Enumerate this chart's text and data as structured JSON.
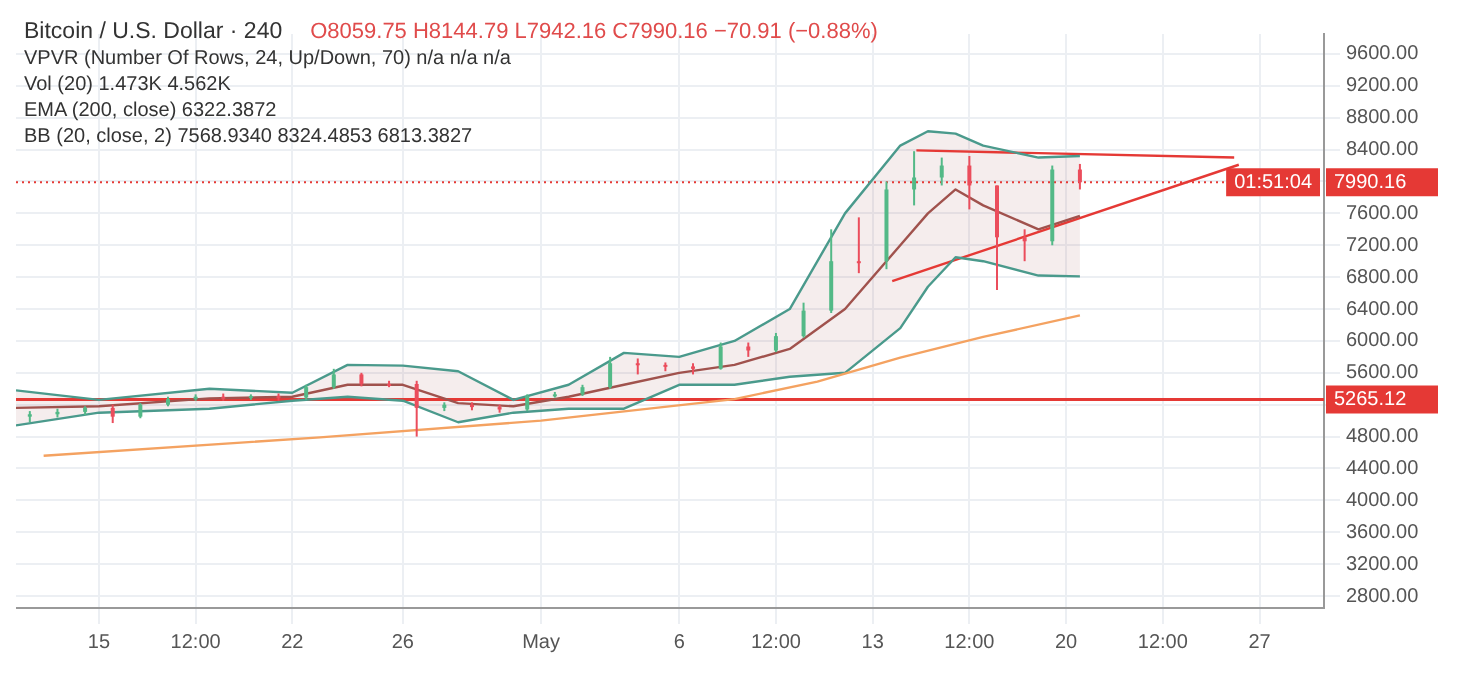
{
  "chart_data": {
    "type": "candlestick",
    "title": "Bitcoin / U.S. Dollar · 240",
    "annotations": [
      "O8059.75 H8144.79 L7942.16 C7990.16 −70.91 (−0.88%)",
      "VPVR (Number Of Rows, 24, Up/Down, 70) n/a n/a n/a",
      "Vol (20) 1.473K 4.562K",
      "EMA (200, close) 6322.3872",
      "BB (20, close, 2) 7568.9340 8324.4853 6813.3827",
      "01:51:04"
    ],
    "x": [
      "--04-12T12:00",
      "--04-13T12:00",
      "--04-14T12:00",
      "--04-15T12:00",
      "--04-16T12:00",
      "--04-17T12:00",
      "--04-18T12:00",
      "--04-19T12:00",
      "--04-20T12:00",
      "--04-21T12:00",
      "--04-22T12:00",
      "--04-23T12:00",
      "--04-24T12:00",
      "--04-25T12:00",
      "--04-26T12:00",
      "--04-27T12:00",
      "--04-28T12:00",
      "--04-29T12:00",
      "--04-30T12:00",
      "--05-01T12:00",
      "--05-02T12:00",
      "--05-03T12:00",
      "--05-04T12:00",
      "--05-05T12:00",
      "--05-06T12:00",
      "--05-07T12:00",
      "--05-08T12:00",
      "--05-09T12:00",
      "--05-10T12:00",
      "--05-11T12:00",
      "--05-12T12:00",
      "--05-13T12:00",
      "--05-14T12:00",
      "--05-15T12:00",
      "--05-16T12:00",
      "--05-17T12:00",
      "--05-18T12:00",
      "--05-19T12:00",
      "--05-20T12:00"
    ],
    "ohlc": [
      [
        5050,
        5120,
        4980,
        5080
      ],
      [
        5080,
        5150,
        5040,
        5110
      ],
      [
        5110,
        5180,
        5070,
        5160
      ],
      [
        5160,
        5200,
        4970,
        5050
      ],
      [
        5050,
        5220,
        5030,
        5200
      ],
      [
        5200,
        5300,
        5180,
        5270
      ],
      [
        5270,
        5330,
        5250,
        5300
      ],
      [
        5300,
        5340,
        5250,
        5290
      ],
      [
        5290,
        5330,
        5260,
        5310
      ],
      [
        5310,
        5340,
        5250,
        5290
      ],
      [
        5290,
        5450,
        5260,
        5420
      ],
      [
        5420,
        5650,
        5400,
        5580
      ],
      [
        5580,
        5600,
        5430,
        5460
      ],
      [
        5460,
        5500,
        5420,
        5460
      ],
      [
        5460,
        5500,
        4800,
        5160
      ],
      [
        5160,
        5230,
        5120,
        5200
      ],
      [
        5200,
        5230,
        5130,
        5170
      ],
      [
        5170,
        5200,
        5100,
        5140
      ],
      [
        5140,
        5330,
        5120,
        5310
      ],
      [
        5310,
        5360,
        5290,
        5330
      ],
      [
        5330,
        5450,
        5310,
        5420
      ],
      [
        5420,
        5800,
        5400,
        5720
      ],
      [
        5720,
        5780,
        5580,
        5700
      ],
      [
        5700,
        5730,
        5620,
        5680
      ],
      [
        5680,
        5720,
        5580,
        5650
      ],
      [
        5650,
        5980,
        5640,
        5930
      ],
      [
        5930,
        5980,
        5800,
        5880
      ],
      [
        5880,
        6100,
        5860,
        6060
      ],
      [
        6060,
        6480,
        6040,
        6380
      ],
      [
        6380,
        7400,
        6350,
        7000
      ],
      [
        7000,
        7550,
        6850,
        7000
      ],
      [
        7000,
        8000,
        6900,
        7900
      ],
      [
        7900,
        8380,
        7700,
        8050
      ],
      [
        8050,
        8300,
        7950,
        8200
      ],
      [
        8200,
        8320,
        7650,
        7950
      ],
      [
        7950,
        7950,
        6640,
        7300
      ],
      [
        7300,
        7400,
        7000,
        7250
      ],
      [
        7250,
        8200,
        7200,
        8150
      ],
      [
        8150,
        8220,
        7900,
        7990
      ]
    ],
    "colors": [
      "#53b987",
      "#53b987",
      "#53b987",
      "#eb4d5c",
      "#53b987",
      "#53b987",
      "#53b987",
      "#eb4d5c",
      "#53b987",
      "#eb4d5c",
      "#53b987",
      "#53b987",
      "#eb4d5c",
      "#eb4d5c",
      "#eb4d5c",
      "#53b987",
      "#eb4d5c",
      "#eb4d5c",
      "#53b987",
      "#53b987",
      "#53b987",
      "#53b987",
      "#eb4d5c",
      "#eb4d5c",
      "#eb4d5c",
      "#53b987",
      "#eb4d5c",
      "#53b987",
      "#53b987",
      "#53b987",
      "#eb4d5c",
      "#53b987",
      "#53b987",
      "#53b987",
      "#eb4d5c",
      "#eb4d5c",
      "#eb4d5c",
      "#53b987",
      "#eb4d5c"
    ],
    "series": [
      {
        "type": "line",
        "color": "#f4a261",
        "x": [
          "--04-13",
          "--04-23",
          "--05-01",
          "--05-08",
          "--05-11",
          "--05-14",
          "--05-17",
          "--05-20T12:00"
        ],
        "values": [
          4560,
          4790,
          5000,
          5270,
          5490,
          5790,
          6050,
          6320
        ]
      },
      {
        "type": "line",
        "color": "#a0524d",
        "x": [
          "--04-12",
          "--04-15",
          "--04-19",
          "--04-22",
          "--04-24",
          "--04-26",
          "--04-28",
          "--04-30",
          "--05-02",
          "--05-04",
          "--05-06",
          "--05-08",
          "--05-10",
          "--05-12",
          "--05-14",
          "--05-15",
          "--05-16",
          "--05-17",
          "--05-19",
          "--05-20T12:00"
        ],
        "values": [
          5160,
          5180,
          5280,
          5300,
          5450,
          5450,
          5220,
          5180,
          5300,
          5450,
          5600,
          5700,
          5900,
          6400,
          7200,
          7600,
          7900,
          7700,
          7400,
          7570
        ],
        "upper": [
          5380,
          5260,
          5400,
          5350,
          5700,
          5690,
          5620,
          5260,
          5450,
          5850,
          5800,
          6000,
          6400,
          7600,
          8450,
          8630,
          8600,
          8450,
          8300,
          8320
        ],
        "lower": [
          4940,
          5100,
          5150,
          5250,
          5300,
          5250,
          4980,
          5100,
          5150,
          5150,
          5450,
          5450,
          5550,
          5600,
          6160,
          6680,
          7050,
          7000,
          6820,
          6810
        ]
      },
      {
        "type": "line",
        "color": "#4a9a8c",
        "x": [
          "--04-12",
          "--04-15",
          "--04-19",
          "--04-22",
          "--04-24",
          "--04-26",
          "--04-28",
          "--04-30",
          "--05-02",
          "--05-04",
          "--05-06",
          "--05-08",
          "--05-10",
          "--05-12",
          "--05-14",
          "--05-15",
          "--05-16",
          "--05-17",
          "--05-19",
          "--05-20T12:00"
        ],
        "values": [
          5380,
          5260,
          5400,
          5350,
          5700,
          5690,
          5620,
          5260,
          5450,
          5850,
          5800,
          6000,
          6400,
          7600,
          8450,
          8630,
          8600,
          8450,
          8300,
          8320
        ]
      },
      {
        "type": "line",
        "color": "#4a9a8c",
        "x": [
          "--04-12",
          "--04-15",
          "--04-19",
          "--04-22",
          "--04-24",
          "--04-26",
          "--04-28",
          "--04-30",
          "--05-02",
          "--05-04",
          "--05-06",
          "--05-08",
          "--05-10",
          "--05-12",
          "--05-14",
          "--05-15",
          "--05-16",
          "--05-17",
          "--05-19",
          "--05-20T12:00"
        ],
        "values": [
          4940,
          5100,
          5150,
          5250,
          5300,
          5250,
          4980,
          5100,
          5150,
          5150,
          5450,
          5450,
          5550,
          5600,
          6160,
          6680,
          7050,
          7000,
          6820,
          6810
        ]
      },
      {
        "type": "line",
        "color": "#e53935",
        "x": [
          "--05-14T14:00",
          "--05-26T02:00"
        ],
        "values": [
          8390,
          8300
        ]
      },
      {
        "type": "line",
        "color": "#e53935",
        "x": [
          "--05-13T17:00",
          "--05-26T06:00"
        ],
        "values": [
          6750,
          8210
        ]
      }
    ],
    "ref_lines": [
      {
        "axis": "y",
        "value": 5265.12,
        "label": "5265.12",
        "color": "#e53935",
        "line_style": "solid"
      },
      {
        "axis": "y",
        "value": 7990.16,
        "label": "7990.16",
        "color": "#e53935",
        "line_style": "dotted"
      }
    ],
    "xlim": [
      "--04-12",
      "--05-29T08:00"
    ],
    "xticks": [
      {
        "value": "--04-15",
        "label": "15"
      },
      {
        "value": "--04-18T12:00",
        "label": "12:00"
      },
      {
        "value": "--04-22",
        "label": "22"
      },
      {
        "value": "--04-26",
        "label": "26"
      },
      {
        "value": "--05-01",
        "label": "May"
      },
      {
        "value": "--05-06",
        "label": "6"
      },
      {
        "value": "--05-09T12:00",
        "label": "12:00"
      },
      {
        "value": "--05-13",
        "label": "13"
      },
      {
        "value": "--05-16T12:00",
        "label": "12:00"
      },
      {
        "value": "--05-20",
        "label": "20"
      },
      {
        "value": "--05-23T12:00",
        "label": "12:00"
      },
      {
        "value": "--05-27",
        "label": "27"
      }
    ],
    "ylim": [
      2650,
      9850
    ],
    "yticks": [
      {
        "value": 2800,
        "label": "2800.00"
      },
      {
        "value": 3200,
        "label": "3200.00"
      },
      {
        "value": 3600,
        "label": "3600.00"
      },
      {
        "value": 4000,
        "label": "4000.00"
      },
      {
        "value": 4400,
        "label": "4400.00"
      },
      {
        "value": 4800,
        "label": "4800.00"
      },
      {
        "value": 5200,
        "label": null
      },
      {
        "value": 5600,
        "label": "5600.00"
      },
      {
        "value": 6000,
        "label": "6000.00"
      },
      {
        "value": 6400,
        "label": "6400.00"
      },
      {
        "value": 6800,
        "label": "6800.00"
      },
      {
        "value": 7200,
        "label": "7200.00"
      },
      {
        "value": 7600,
        "label": "7600.00"
      },
      {
        "value": 8000,
        "label": null
      },
      {
        "value": 8400,
        "label": "8400.00"
      },
      {
        "value": 8800,
        "label": "8800.00"
      },
      {
        "value": 9200,
        "label": "9200.00"
      },
      {
        "value": 9600,
        "label": "9600.00"
      }
    ],
    "grid": true,
    "legend": false
  }
}
